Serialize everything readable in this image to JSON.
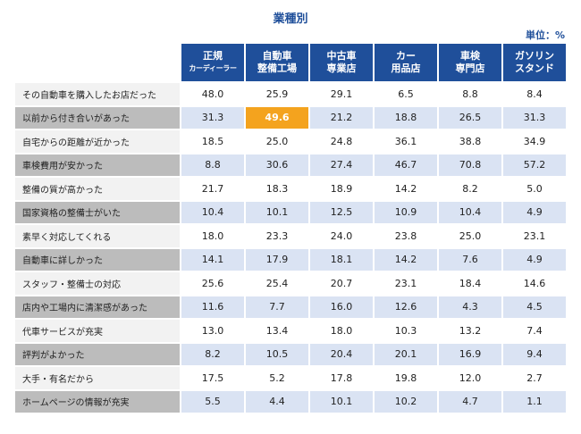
{
  "title": "業種別",
  "unit": "単位：%",
  "highlight_color": "#f4a31e",
  "header_color": "#1f4f9a",
  "chart_data": {
    "type": "table",
    "title": "業種別",
    "unit": "単位：%",
    "columns": [
      {
        "line1": "正規",
        "line2": "カーディーラー"
      },
      {
        "line1": "自動車",
        "line2": "整備工場"
      },
      {
        "line1": "中古車",
        "line2": "専業店"
      },
      {
        "line1": "カー",
        "line2": "用品店"
      },
      {
        "line1": "車検",
        "line2": "専門店"
      },
      {
        "line1": "ガソリン",
        "line2": "スタンド"
      }
    ],
    "rows": [
      {
        "label": "その自動車を購入したお店だった",
        "values": [
          "48.0",
          "25.9",
          "29.1",
          "6.5",
          "8.8",
          "8.4"
        ]
      },
      {
        "label": "以前から付き合いがあった",
        "values": [
          "31.3",
          "49.6",
          "21.2",
          "18.8",
          "26.5",
          "31.3"
        ]
      },
      {
        "label": "自宅からの距離が近かった",
        "values": [
          "18.5",
          "25.0",
          "24.8",
          "36.1",
          "38.8",
          "34.9"
        ]
      },
      {
        "label": "車検費用が安かった",
        "values": [
          "8.8",
          "30.6",
          "27.4",
          "46.7",
          "70.8",
          "57.2"
        ]
      },
      {
        "label": "整備の質が高かった",
        "values": [
          "21.7",
          "18.3",
          "18.9",
          "14.2",
          "8.2",
          "5.0"
        ]
      },
      {
        "label": "国家資格の整備士がいた",
        "values": [
          "10.4",
          "10.1",
          "12.5",
          "10.9",
          "10.4",
          "4.9"
        ]
      },
      {
        "label": "素早く対応してくれる",
        "values": [
          "18.0",
          "23.3",
          "24.0",
          "23.8",
          "25.0",
          "23.1"
        ]
      },
      {
        "label": "自動車に詳しかった",
        "values": [
          "14.1",
          "17.9",
          "18.1",
          "14.2",
          "7.6",
          "4.9"
        ]
      },
      {
        "label": "スタッフ・整備士の対応",
        "values": [
          "25.6",
          "25.4",
          "20.7",
          "23.1",
          "18.4",
          "14.6"
        ]
      },
      {
        "label": "店内や工場内に清潔感があった",
        "values": [
          "11.6",
          "7.7",
          "16.0",
          "12.6",
          "4.3",
          "4.5"
        ]
      },
      {
        "label": "代車サービスが充実",
        "values": [
          "13.0",
          "13.4",
          "18.0",
          "10.3",
          "13.2",
          "7.4"
        ]
      },
      {
        "label": "評判がよかった",
        "values": [
          "8.2",
          "10.5",
          "20.4",
          "20.1",
          "16.9",
          "9.4"
        ]
      },
      {
        "label": "大手・有名だから",
        "values": [
          "17.5",
          "5.2",
          "17.8",
          "19.8",
          "12.0",
          "2.7"
        ]
      },
      {
        "label": "ホームページの情報が充実",
        "values": [
          "5.5",
          "4.4",
          "10.1",
          "10.2",
          "4.7",
          "1.1"
        ]
      }
    ],
    "highlight": {
      "row": 1,
      "col": 1
    }
  }
}
